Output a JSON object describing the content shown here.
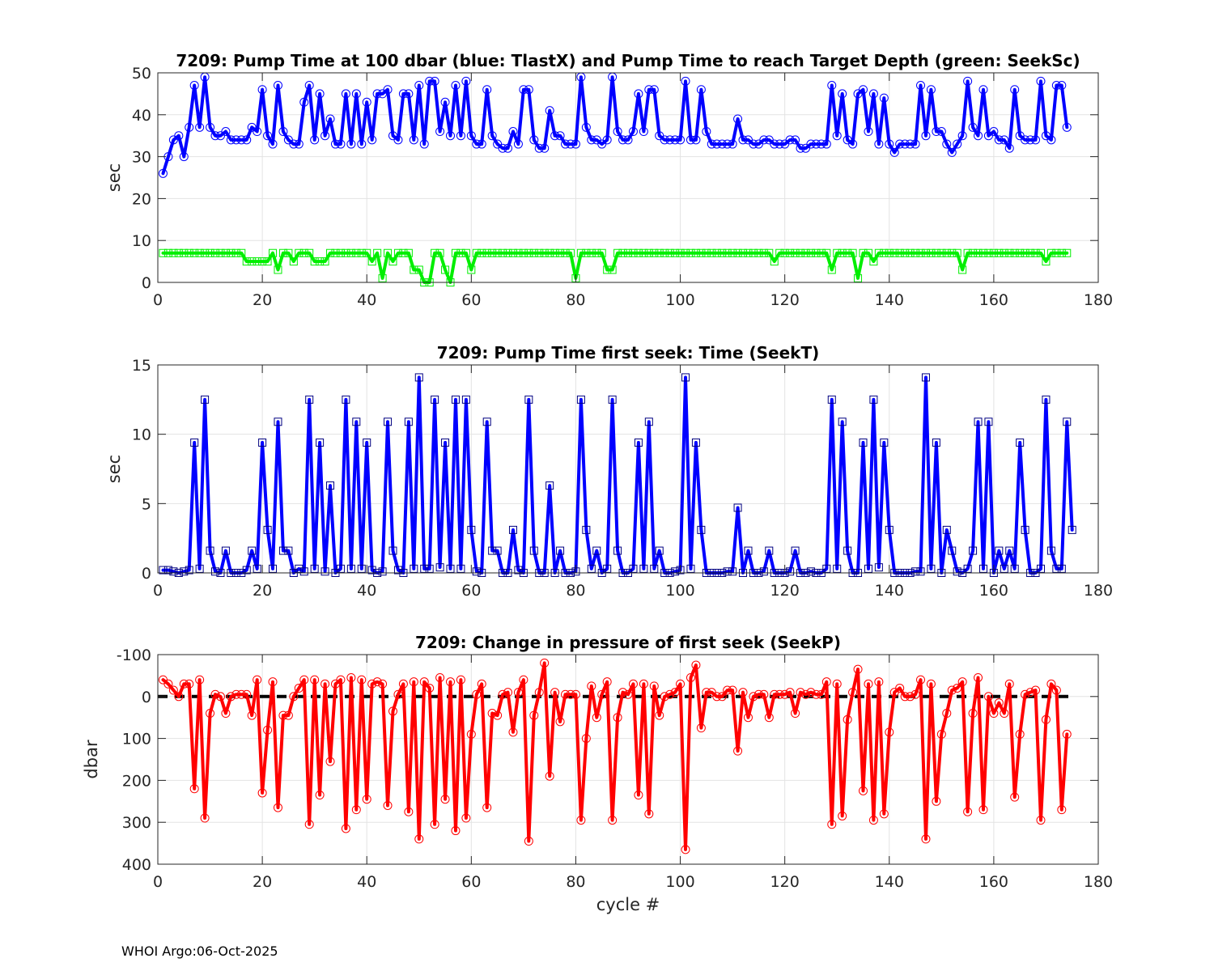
{
  "footer": "WHOI Argo:06-Oct-2025",
  "chart_data": [
    {
      "type": "line",
      "title": "7209:  Pump Time at 100 dbar (blue: TlastX) and Pump Time to reach Target Depth (green: SeekSc)",
      "xlabel": "",
      "ylabel": "sec",
      "xlim": [
        0,
        180
      ],
      "ylim": [
        0,
        50
      ],
      "xticks": [
        0,
        20,
        40,
        60,
        80,
        100,
        120,
        140,
        160,
        180
      ],
      "yticks": [
        0,
        10,
        20,
        30,
        40,
        50
      ],
      "grid": true,
      "series": [
        {
          "name": "TlastX",
          "color": "#0000ff",
          "marker": "circle",
          "x_start": 1,
          "values": [
            26,
            30,
            34,
            35,
            30,
            37,
            47,
            37,
            49,
            37,
            35,
            35,
            36,
            34,
            34,
            34,
            34,
            37,
            36,
            46,
            35,
            33,
            47,
            36,
            34,
            33,
            33,
            43,
            47,
            34,
            45,
            35,
            39,
            33,
            33,
            45,
            33,
            45,
            33,
            43,
            34,
            45,
            45,
            46,
            35,
            34,
            45,
            45,
            34,
            47,
            33,
            48,
            48,
            36,
            43,
            35,
            47,
            35,
            48,
            35,
            33,
            33,
            46,
            35,
            33,
            32,
            32,
            36,
            33,
            46,
            46,
            34,
            32,
            32,
            41,
            35,
            35,
            33,
            33,
            33,
            49,
            37,
            34,
            34,
            33,
            34,
            49,
            36,
            34,
            34,
            36,
            45,
            36,
            46,
            46,
            35,
            34,
            34,
            34,
            34,
            48,
            34,
            34,
            46,
            36,
            33,
            33,
            33,
            33,
            33,
            39,
            34,
            34,
            33,
            33,
            34,
            34,
            33,
            33,
            33,
            34,
            34,
            32,
            32,
            33,
            33,
            33,
            33,
            47,
            35,
            45,
            34,
            33,
            45,
            46,
            36,
            45,
            33,
            44,
            33,
            31,
            33,
            33,
            33,
            33,
            47,
            35,
            46,
            36,
            36,
            33,
            31,
            33,
            35,
            48,
            37,
            35,
            46,
            35,
            36,
            34,
            34,
            32,
            46,
            35,
            34,
            34,
            34,
            48,
            35,
            34,
            47,
            47,
            37
          ]
        },
        {
          "name": "SeekSc",
          "color": "#00ee00",
          "marker": "square",
          "x_start": 1,
          "values": [
            7,
            7,
            7,
            7,
            7,
            7,
            7,
            7,
            7,
            7,
            7,
            7,
            7,
            7,
            7,
            7,
            5,
            5,
            5,
            5,
            5,
            7,
            3,
            7,
            7,
            5,
            7,
            7,
            7,
            5,
            5,
            5,
            7,
            7,
            7,
            7,
            7,
            7,
            7,
            7,
            5,
            7,
            1,
            7,
            5,
            7,
            7,
            7,
            3,
            3,
            0,
            0,
            7,
            7,
            3,
            0,
            7,
            7,
            7,
            3,
            7,
            7,
            7,
            7,
            7,
            7,
            7,
            7,
            7,
            7,
            7,
            7,
            7,
            7,
            7,
            7,
            7,
            7,
            7,
            1,
            7,
            7,
            7,
            7,
            7,
            3,
            3,
            7,
            7,
            7,
            7,
            7,
            7,
            7,
            7,
            7,
            7,
            7,
            7,
            7,
            7,
            7,
            7,
            7,
            7,
            7,
            7,
            7,
            7,
            7,
            7,
            7,
            7,
            7,
            7,
            7,
            7,
            5,
            7,
            7,
            7,
            7,
            7,
            7,
            7,
            7,
            7,
            7,
            3,
            7,
            7,
            7,
            7,
            1,
            7,
            7,
            5,
            7,
            7,
            7,
            7,
            7,
            7,
            7,
            7,
            7,
            7,
            7,
            7,
            7,
            7,
            7,
            7,
            3,
            7,
            7,
            7,
            7,
            7,
            7,
            7,
            7,
            7,
            7,
            7,
            7,
            7,
            7,
            7,
            5,
            7,
            7,
            7,
            7
          ]
        }
      ]
    },
    {
      "type": "line",
      "title": "7209: Pump Time first seek: Time (SeekT)",
      "xlabel": "",
      "ylabel": "sec",
      "xlim": [
        0,
        180
      ],
      "ylim": [
        0,
        15
      ],
      "xticks": [
        0,
        20,
        40,
        60,
        80,
        100,
        120,
        140,
        160,
        180
      ],
      "yticks": [
        0,
        5,
        10,
        15
      ],
      "grid": true,
      "series": [
        {
          "name": "SeekT",
          "color": "#0000ff",
          "marker": "square",
          "x_start": 1,
          "values": [
            0.2,
            0.2,
            0.1,
            0,
            0.1,
            0.2,
            9.4,
            0.3,
            12.5,
            1.6,
            0.1,
            0,
            1.6,
            0,
            0,
            0,
            0.2,
            1.6,
            0.3,
            9.4,
            3.1,
            0.3,
            10.9,
            1.6,
            1.6,
            0,
            0.3,
            0.1,
            12.5,
            0.3,
            9.4,
            0.1,
            6.3,
            0,
            0.3,
            12.5,
            0.3,
            10.9,
            0.3,
            9.4,
            0.2,
            0,
            0.1,
            10.9,
            1.6,
            0.2,
            0,
            10.9,
            0.3,
            14.1,
            0.3,
            0.3,
            12.5,
            0.4,
            9.4,
            0.3,
            12.5,
            0.3,
            12.5,
            3.1,
            0.1,
            0,
            10.9,
            1.6,
            1.6,
            0,
            0,
            3.1,
            0.2,
            0,
            12.5,
            1.6,
            0,
            0,
            6.3,
            0,
            1.6,
            0,
            0,
            0.1,
            12.5,
            3.1,
            0.3,
            1.6,
            0,
            0.3,
            12.5,
            1.6,
            0,
            0,
            0.3,
            9.4,
            0.3,
            10.9,
            0.3,
            1.6,
            0,
            0,
            0.1,
            0.2,
            14.1,
            0.3,
            9.4,
            3.1,
            0,
            0,
            0,
            0,
            0.1,
            0.1,
            4.7,
            0,
            1.6,
            0,
            0,
            0.1,
            1.6,
            0,
            0,
            0,
            0.1,
            1.6,
            0,
            0,
            0.1,
            0,
            0,
            0.3,
            12.5,
            0.3,
            10.9,
            1.6,
            0,
            0,
            9.4,
            0.3,
            12.5,
            0.4,
            9.4,
            3.1,
            0,
            0,
            0,
            0,
            0.1,
            0.1,
            14.1,
            0.3,
            9.4,
            0,
            3.1,
            1.6,
            0.1,
            0,
            0.3,
            1.6,
            10.9,
            0.3,
            10.9,
            0,
            1.6,
            0.3,
            1.6,
            0.3,
            9.4,
            3.1,
            0,
            0,
            0.3,
            12.5,
            1.6,
            0.3,
            0.3,
            10.9,
            3.1
          ]
        }
      ]
    },
    {
      "type": "line",
      "title": "7209: Change in pressure of first seek (SeekP)",
      "xlabel": "cycle #",
      "ylabel": "dbar",
      "xlim": [
        0,
        180
      ],
      "ylim": [
        -100,
        400
      ],
      "y_reversed": true,
      "xticks": [
        0,
        20,
        40,
        60,
        80,
        100,
        120,
        140,
        160,
        180
      ],
      "yticks": [
        -100,
        0,
        100,
        200,
        300,
        400
      ],
      "grid": true,
      "reference_line": {
        "y": 0,
        "style": "dashed",
        "color": "#000000"
      },
      "series": [
        {
          "name": "SeekP",
          "color": "#ff0000",
          "marker": "circle",
          "x_start": 1,
          "values": [
            -40,
            -30,
            -15,
            0,
            -30,
            -30,
            220,
            -40,
            290,
            40,
            -5,
            0,
            40,
            0,
            -5,
            -5,
            -5,
            45,
            -40,
            230,
            80,
            -35,
            265,
            45,
            45,
            0,
            -20,
            -40,
            305,
            -40,
            235,
            -30,
            155,
            -30,
            -40,
            315,
            -45,
            270,
            -40,
            245,
            -30,
            -35,
            -30,
            260,
            35,
            -5,
            -30,
            275,
            -35,
            340,
            -35,
            -20,
            305,
            -45,
            245,
            -35,
            320,
            -40,
            290,
            90,
            -5,
            -30,
            265,
            40,
            45,
            -5,
            -10,
            85,
            -10,
            -40,
            345,
            45,
            -10,
            -80,
            190,
            -10,
            60,
            -5,
            -5,
            -5,
            295,
            100,
            -25,
            50,
            -5,
            -35,
            295,
            50,
            -10,
            -5,
            -30,
            235,
            -30,
            280,
            -25,
            45,
            0,
            -5,
            -10,
            -30,
            365,
            -45,
            -75,
            75,
            -10,
            -10,
            0,
            0,
            -15,
            -15,
            130,
            -10,
            50,
            0,
            -5,
            -5,
            50,
            -5,
            -5,
            -5,
            -10,
            40,
            -10,
            -5,
            -10,
            -5,
            -5,
            -35,
            305,
            -30,
            285,
            55,
            -10,
            -65,
            225,
            -30,
            295,
            -35,
            280,
            85,
            -10,
            -20,
            0,
            0,
            -5,
            -40,
            340,
            -30,
            250,
            90,
            40,
            -15,
            -20,
            -35,
            275,
            40,
            -45,
            270,
            0,
            40,
            15,
            40,
            -30,
            240,
            90,
            -5,
            -10,
            -15,
            295,
            55,
            -30,
            -15,
            270,
            90
          ]
        }
      ]
    }
  ]
}
